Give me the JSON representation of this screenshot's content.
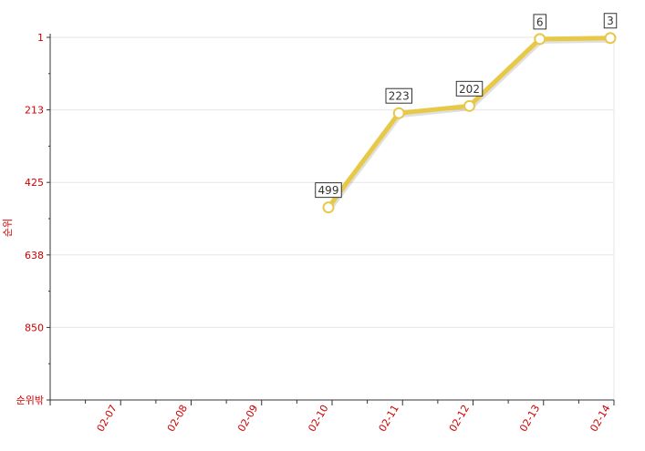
{
  "chart_data": {
    "type": "line",
    "title": "",
    "xlabel": "",
    "ylabel": "순위",
    "y_reversed": true,
    "ylim": [
      1,
      1063
    ],
    "y_ticks": [
      "1",
      "213",
      "425",
      "638",
      "850",
      "순위밖"
    ],
    "x": [
      "02-07",
      "02-08",
      "02-09",
      "02-10",
      "02-11",
      "02-12",
      "02-13",
      "02-14"
    ],
    "series": [
      {
        "values": [
          null,
          null,
          null,
          499,
          223,
          202,
          6,
          3
        ],
        "labels": [
          "",
          "",
          "",
          "499",
          "223",
          "202",
          "6",
          "3"
        ]
      }
    ],
    "grid": true,
    "colors": {
      "line": "#e8c847",
      "marker_fill": "#ffffff",
      "tick_text": "#cc0000",
      "grid": "#e6e6e6",
      "axis": "#333333",
      "label_border": "#333333"
    }
  }
}
